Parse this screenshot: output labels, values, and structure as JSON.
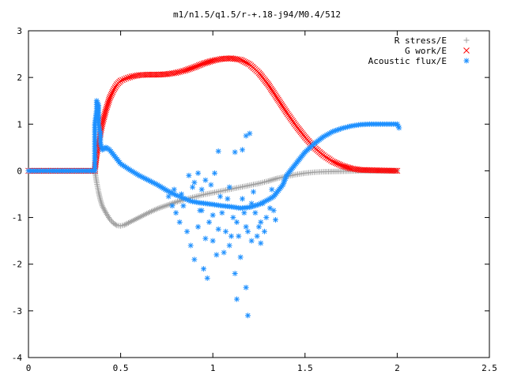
{
  "chart_data": {
    "type": "scatter",
    "title": "m1/n1.5/q1.5/r-+.18-j94/M0.4/512",
    "xlabel": "",
    "ylabel": "",
    "xlim": [
      0,
      2.5
    ],
    "ylim": [
      -4,
      3
    ],
    "xticks": [
      0,
      0.5,
      1,
      1.5,
      2,
      2.5
    ],
    "xtick_labels": [
      "0",
      "0.5",
      "1",
      "1.5",
      "2",
      "2.5"
    ],
    "yticks": [
      -4,
      -3,
      -2,
      -1,
      0,
      1,
      2,
      3
    ],
    "ytick_labels": [
      "-4",
      "-3",
      "-2",
      "-1",
      "0",
      "1",
      "2",
      "3"
    ],
    "grid": false,
    "legend_position": "top-right",
    "series": [
      {
        "name": "R stress/E",
        "marker": "plus",
        "color": "#a0a0a0",
        "points": [
          [
            0.0,
            0.0
          ],
          [
            0.36,
            0.0
          ],
          [
            0.37,
            -0.25
          ],
          [
            0.38,
            -0.45
          ],
          [
            0.39,
            -0.62
          ],
          [
            0.4,
            -0.75
          ],
          [
            0.42,
            -0.9
          ],
          [
            0.44,
            -1.03
          ],
          [
            0.46,
            -1.12
          ],
          [
            0.48,
            -1.17
          ],
          [
            0.5,
            -1.18
          ],
          [
            0.52,
            -1.16
          ],
          [
            0.55,
            -1.1
          ],
          [
            0.6,
            -1.0
          ],
          [
            0.65,
            -0.9
          ],
          [
            0.7,
            -0.81
          ],
          [
            0.75,
            -0.74
          ],
          [
            0.8,
            -0.67
          ],
          [
            0.85,
            -0.61
          ],
          [
            0.9,
            -0.56
          ],
          [
            0.95,
            -0.51
          ],
          [
            1.0,
            -0.47
          ],
          [
            1.05,
            -0.43
          ],
          [
            1.1,
            -0.39
          ],
          [
            1.15,
            -0.35
          ],
          [
            1.2,
            -0.31
          ],
          [
            1.25,
            -0.27
          ],
          [
            1.3,
            -0.22
          ],
          [
            1.35,
            -0.16
          ],
          [
            1.4,
            -0.12
          ],
          [
            1.45,
            -0.08
          ],
          [
            1.5,
            -0.05
          ],
          [
            1.55,
            -0.03
          ],
          [
            1.6,
            -0.02
          ],
          [
            1.7,
            -0.01
          ],
          [
            1.8,
            0.0
          ],
          [
            1.9,
            0.0
          ],
          [
            2.0,
            0.0
          ]
        ]
      },
      {
        "name": "G work/E",
        "marker": "cross",
        "color": "#ff0000",
        "points": [
          [
            0.0,
            0.0
          ],
          [
            0.36,
            0.0
          ],
          [
            0.37,
            0.35
          ],
          [
            0.38,
            0.55
          ],
          [
            0.39,
            0.8
          ],
          [
            0.4,
            1.0
          ],
          [
            0.42,
            1.3
          ],
          [
            0.44,
            1.55
          ],
          [
            0.46,
            1.72
          ],
          [
            0.48,
            1.85
          ],
          [
            0.5,
            1.93
          ],
          [
            0.53,
            1.98
          ],
          [
            0.56,
            2.02
          ],
          [
            0.6,
            2.05
          ],
          [
            0.65,
            2.06
          ],
          [
            0.7,
            2.06
          ],
          [
            0.75,
            2.07
          ],
          [
            0.8,
            2.1
          ],
          [
            0.85,
            2.15
          ],
          [
            0.9,
            2.22
          ],
          [
            0.95,
            2.3
          ],
          [
            1.0,
            2.36
          ],
          [
            1.05,
            2.4
          ],
          [
            1.1,
            2.41
          ],
          [
            1.15,
            2.38
          ],
          [
            1.2,
            2.28
          ],
          [
            1.25,
            2.1
          ],
          [
            1.3,
            1.85
          ],
          [
            1.35,
            1.55
          ],
          [
            1.4,
            1.25
          ],
          [
            1.45,
            0.97
          ],
          [
            1.5,
            0.72
          ],
          [
            1.55,
            0.5
          ],
          [
            1.6,
            0.33
          ],
          [
            1.65,
            0.2
          ],
          [
            1.7,
            0.11
          ],
          [
            1.75,
            0.05
          ],
          [
            1.8,
            0.02
          ],
          [
            1.9,
            0.01
          ],
          [
            2.0,
            0.0
          ]
        ]
      },
      {
        "name": "Acoustic flux/E",
        "marker": "star",
        "color": "#1e90ff",
        "points": [
          [
            0.0,
            0.0
          ],
          [
            0.36,
            0.0
          ],
          [
            0.36,
            1.0
          ],
          [
            0.37,
            1.3
          ],
          [
            0.37,
            1.5
          ],
          [
            0.38,
            1.4
          ],
          [
            0.38,
            1.0
          ],
          [
            0.39,
            0.8
          ],
          [
            0.39,
            0.6
          ],
          [
            0.4,
            0.45
          ],
          [
            0.42,
            0.5
          ],
          [
            0.44,
            0.45
          ],
          [
            0.46,
            0.35
          ],
          [
            0.48,
            0.25
          ],
          [
            0.5,
            0.15
          ],
          [
            0.55,
            0.02
          ],
          [
            0.6,
            -0.1
          ],
          [
            0.65,
            -0.2
          ],
          [
            0.7,
            -0.3
          ],
          [
            0.75,
            -0.42
          ],
          [
            0.8,
            -0.52
          ],
          [
            0.82,
            -0.55
          ],
          [
            0.85,
            -0.6
          ],
          [
            0.88,
            -0.65
          ],
          [
            0.92,
            -0.68
          ],
          [
            0.96,
            -0.7
          ],
          [
            1.0,
            -0.72
          ],
          [
            1.05,
            -0.75
          ],
          [
            1.1,
            -0.77
          ],
          [
            1.15,
            -0.8
          ],
          [
            1.2,
            -0.78
          ],
          [
            1.25,
            -0.72
          ],
          [
            1.3,
            -0.62
          ],
          [
            1.33,
            -0.55
          ],
          [
            1.35,
            -0.45
          ],
          [
            1.38,
            -0.3
          ],
          [
            1.4,
            -0.1
          ],
          [
            1.45,
            0.15
          ],
          [
            1.5,
            0.4
          ],
          [
            1.55,
            0.58
          ],
          [
            1.6,
            0.73
          ],
          [
            1.65,
            0.84
          ],
          [
            1.7,
            0.91
          ],
          [
            1.75,
            0.96
          ],
          [
            1.8,
            0.99
          ],
          [
            1.85,
            1.0
          ],
          [
            1.9,
            1.0
          ],
          [
            1.95,
            1.0
          ],
          [
            2.0,
            1.0
          ],
          [
            2.01,
            0.92
          ],
          [
            0.98,
            -1.1
          ],
          [
            1.0,
            -1.5
          ],
          [
            1.02,
            -1.8
          ],
          [
            0.95,
            -2.1
          ],
          [
            0.97,
            -2.3
          ],
          [
            1.12,
            -2.2
          ],
          [
            1.13,
            -2.75
          ],
          [
            1.18,
            -2.5
          ],
          [
            1.19,
            -3.1
          ],
          [
            1.03,
            0.42
          ],
          [
            1.12,
            0.4
          ],
          [
            1.16,
            0.45
          ],
          [
            1.2,
            0.8
          ],
          [
            1.18,
            0.75
          ],
          [
            0.87,
            -0.1
          ],
          [
            0.9,
            -0.25
          ],
          [
            0.92,
            -0.05
          ],
          [
            0.94,
            -0.4
          ],
          [
            0.96,
            -0.2
          ],
          [
            0.99,
            -0.3
          ],
          [
            1.01,
            -0.05
          ],
          [
            1.05,
            -0.9
          ],
          [
            1.07,
            -1.3
          ],
          [
            1.09,
            -1.6
          ],
          [
            1.11,
            -1.0
          ],
          [
            1.14,
            -1.4
          ],
          [
            1.16,
            -0.6
          ],
          [
            1.18,
            -1.2
          ],
          [
            1.21,
            -1.5
          ],
          [
            1.23,
            -0.9
          ],
          [
            1.25,
            -1.2
          ],
          [
            1.27,
            -0.7
          ],
          [
            1.29,
            -1.0
          ],
          [
            1.31,
            -0.8
          ],
          [
            0.8,
            -0.9
          ],
          [
            0.82,
            -1.1
          ],
          [
            0.84,
            -0.75
          ],
          [
            0.86,
            -1.3
          ],
          [
            0.88,
            -1.6
          ],
          [
            0.9,
            -1.9
          ],
          [
            0.92,
            -1.2
          ],
          [
            0.94,
            -0.85
          ],
          [
            0.96,
            -1.45
          ],
          [
            1.0,
            -0.95
          ],
          [
            1.03,
            -1.25
          ],
          [
            1.06,
            -1.75
          ],
          [
            1.08,
            -0.6
          ],
          [
            1.1,
            -1.4
          ],
          [
            1.13,
            -1.1
          ],
          [
            1.15,
            -1.85
          ],
          [
            1.17,
            -0.9
          ],
          [
            1.19,
            -1.3
          ],
          [
            1.21,
            -0.7
          ],
          [
            1.24,
            -1.4
          ],
          [
            1.26,
            -1.1
          ],
          [
            1.28,
            -1.3
          ],
          [
            0.76,
            -0.55
          ],
          [
            0.78,
            -0.75
          ],
          [
            0.79,
            -0.4
          ],
          [
            0.83,
            -0.5
          ],
          [
            1.33,
            -0.85
          ],
          [
            1.32,
            -0.4
          ],
          [
            1.34,
            -1.05
          ],
          [
            0.89,
            -0.35
          ],
          [
            0.93,
            -0.85
          ],
          [
            1.04,
            -0.55
          ],
          [
            1.09,
            -0.35
          ],
          [
            1.22,
            -0.45
          ],
          [
            1.26,
            -1.55
          ]
        ]
      }
    ]
  }
}
